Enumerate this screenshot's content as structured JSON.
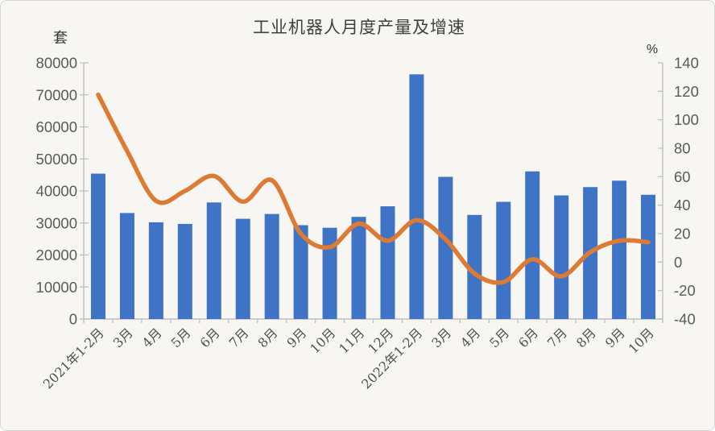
{
  "page": {
    "background": "#f7f6f3"
  },
  "chart": {
    "title": "工业机器人月度产量及增速",
    "left_axis_unit": "套",
    "right_axis_unit": "%",
    "colors": {
      "bar": "#3e73c6",
      "line": "#dd7a33",
      "axis": "#bfbfbf",
      "tick_label": "#595959",
      "title_text": "#3f3f3f"
    }
  },
  "chart_data": {
    "type": "bar",
    "subtype": "combo-bar-line",
    "title": "工业机器人月度产量及增速",
    "categories": [
      "2021年1-2月",
      "3月",
      "4月",
      "5月",
      "6月",
      "7月",
      "8月",
      "9月",
      "10月",
      "11月",
      "12月",
      "2022年1-2月",
      "3月",
      "4月",
      "5月",
      "6月",
      "7月",
      "8月",
      "9月",
      "10月"
    ],
    "series": [
      {
        "name": "月度产量",
        "unit": "套",
        "type": "bar",
        "axis": "left",
        "values": [
          45400,
          33100,
          30200,
          29700,
          36400,
          31300,
          32800,
          29300,
          28500,
          31900,
          35200,
          76400,
          44400,
          32500,
          36600,
          46100,
          38600,
          41200,
          43200,
          38800
        ]
      },
      {
        "name": "增速",
        "unit": "%",
        "type": "line",
        "axis": "right",
        "values": [
          117.6,
          78,
          43,
          50,
          60.5,
          42.5,
          57.5,
          20,
          10.5,
          27,
          15,
          29.5,
          16,
          -8,
          -14,
          2,
          -10,
          7,
          15,
          14
        ]
      }
    ],
    "axes": {
      "left": {
        "unit": "套",
        "min": 0,
        "max": 80000,
        "tick_step": 10000,
        "ticks": [
          0,
          10000,
          20000,
          30000,
          40000,
          50000,
          60000,
          70000,
          80000
        ]
      },
      "right": {
        "unit": "%",
        "min": -40,
        "max": 140,
        "tick_step": 20,
        "ticks": [
          -40,
          -20,
          0,
          20,
          40,
          60,
          80,
          100,
          120,
          140
        ]
      }
    },
    "grid": false,
    "legend": "none",
    "x_label_rotation": 45
  }
}
